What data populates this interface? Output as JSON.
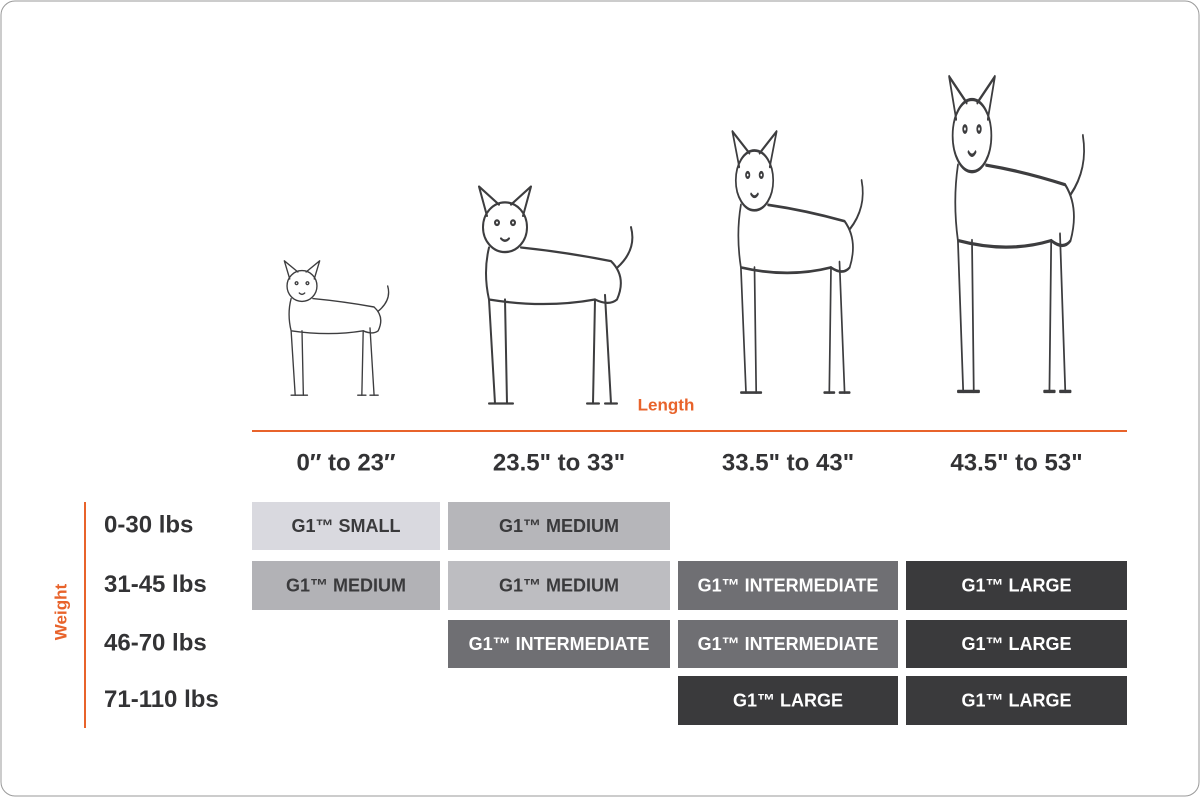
{
  "length_label": "Length",
  "weight_label": "Weight",
  "columns": [
    "0′′ to 23′′",
    "23.5\" to 33\"",
    "33.5\" to 43\"",
    "43.5\" to 53\""
  ],
  "rows": [
    {
      "label": "0-30 lbs",
      "cells": [
        {
          "text": "G1™ SMALL",
          "color": "#d9d9df",
          "text_color": "#3a3a3c"
        },
        {
          "text": "G1™ MEDIUM",
          "color": "#b6b6ba",
          "text_color": "#3a3a3c"
        },
        null,
        null
      ]
    },
    {
      "label": "31-45 lbs",
      "cells": [
        {
          "text": "G1™ MEDIUM",
          "color": "#b2b2b6",
          "text_color": "#3a3a3c"
        },
        {
          "text": "G1™ MEDIUM",
          "color": "#bdbdc1",
          "text_color": "#3a3a3c"
        },
        {
          "text": "G1™ INTERMEDIATE",
          "color": "#6f6f73",
          "text_color": "#ffffff"
        },
        {
          "text": "G1™ LARGE",
          "color": "#3a3a3c",
          "text_color": "#ffffff"
        }
      ]
    },
    {
      "label": "46-70 lbs",
      "cells": [
        null,
        {
          "text": "G1™ INTERMEDIATE",
          "color": "#6f6f73",
          "text_color": "#ffffff"
        },
        {
          "text": "G1™ INTERMEDIATE",
          "color": "#6f6f73",
          "text_color": "#ffffff"
        },
        {
          "text": "G1™ LARGE",
          "color": "#3a3a3c",
          "text_color": "#ffffff"
        }
      ]
    },
    {
      "label": "71-110 lbs",
      "cells": [
        null,
        null,
        {
          "text": "G1™ LARGE",
          "color": "#3a3a3c",
          "text_color": "#ffffff"
        },
        {
          "text": "G1™ LARGE",
          "color": "#3a3a3c",
          "text_color": "#ffffff"
        }
      ]
    }
  ]
}
